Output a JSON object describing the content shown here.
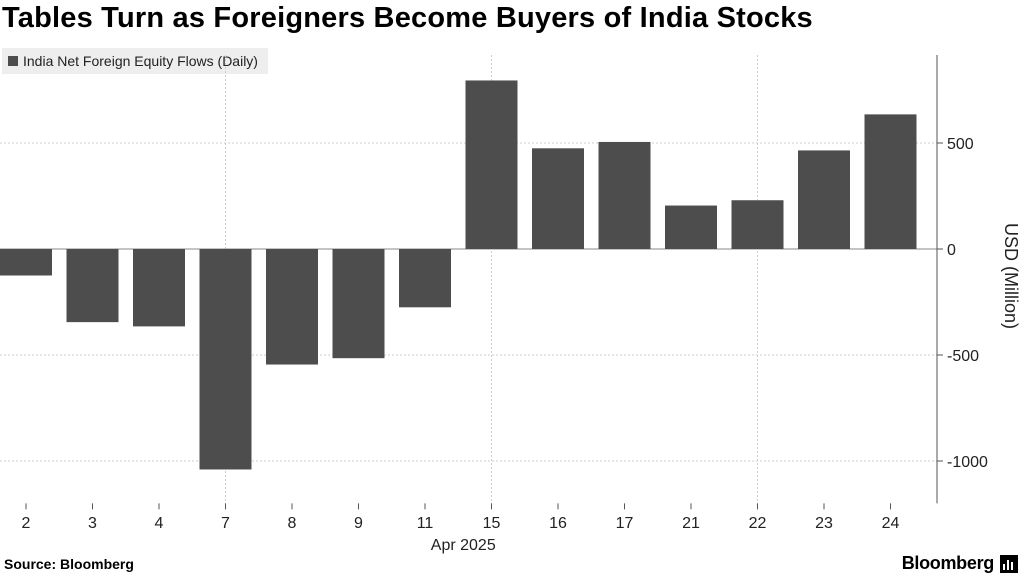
{
  "chart_data": {
    "type": "bar",
    "title": "Tables Turn as Foreigners Become Buyers of India Stocks",
    "legend": [
      "India Net Foreign Equity Flows (Daily)"
    ],
    "categories": [
      "2",
      "3",
      "4",
      "7",
      "8",
      "9",
      "11",
      "15",
      "16",
      "17",
      "21",
      "22",
      "23",
      "24"
    ],
    "xlabel": "Apr 2025",
    "ylabel": "USD (Million)",
    "series": [
      {
        "name": "India Net Foreign Equity Flows (Daily)",
        "values": [
          -125,
          -345,
          -365,
          -1040,
          -545,
          -515,
          -275,
          795,
          475,
          505,
          205,
          230,
          465,
          635
        ]
      }
    ],
    "yticks": [
      500,
      0,
      -500,
      -1000
    ],
    "ylim": [
      -1200,
      930
    ],
    "grid": true,
    "legend_position": "top-left",
    "axis_position": "right",
    "colors": {
      "bar": "#4d4d4d",
      "grid": "#cccccc",
      "axis": "#555555"
    }
  },
  "footer": {
    "source": "Source: Bloomberg",
    "brand": "Bloomberg"
  }
}
